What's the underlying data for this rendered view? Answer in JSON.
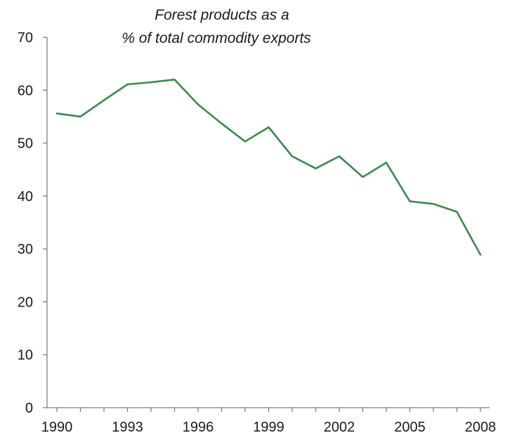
{
  "chart_data": {
    "type": "line",
    "title_lines": [
      "Forest products as a",
      "% of total commodity exports"
    ],
    "xlabel": "",
    "ylabel": "",
    "xlim": [
      1990,
      2008
    ],
    "ylim": [
      0,
      70
    ],
    "x_ticks": [
      1990,
      1993,
      1996,
      1999,
      2002,
      2005,
      2008
    ],
    "x_tick_labels": [
      "1990",
      "1993",
      "1996",
      "1999",
      "2002",
      "2005",
      "2008"
    ],
    "y_ticks": [
      0,
      10,
      20,
      30,
      40,
      50,
      60,
      70
    ],
    "y_tick_labels": [
      "0",
      "10",
      "20",
      "30",
      "40",
      "50",
      "60",
      "70"
    ],
    "grid": false,
    "legend": "none",
    "series": [
      {
        "color": "#3a8a47",
        "x": [
          1990,
          1991,
          1992,
          1993,
          1994,
          1995,
          1996,
          1997,
          1998,
          1999,
          2000,
          2001,
          2002,
          2003,
          2004,
          2005,
          2006,
          2007,
          2008
        ],
        "values": [
          55.6,
          55.0,
          58.1,
          61.1,
          61.5,
          62.0,
          57.3,
          53.7,
          50.3,
          53.0,
          47.5,
          45.2,
          47.5,
          43.6,
          46.3,
          39.0,
          38.5,
          37.0,
          28.9
        ]
      }
    ]
  }
}
